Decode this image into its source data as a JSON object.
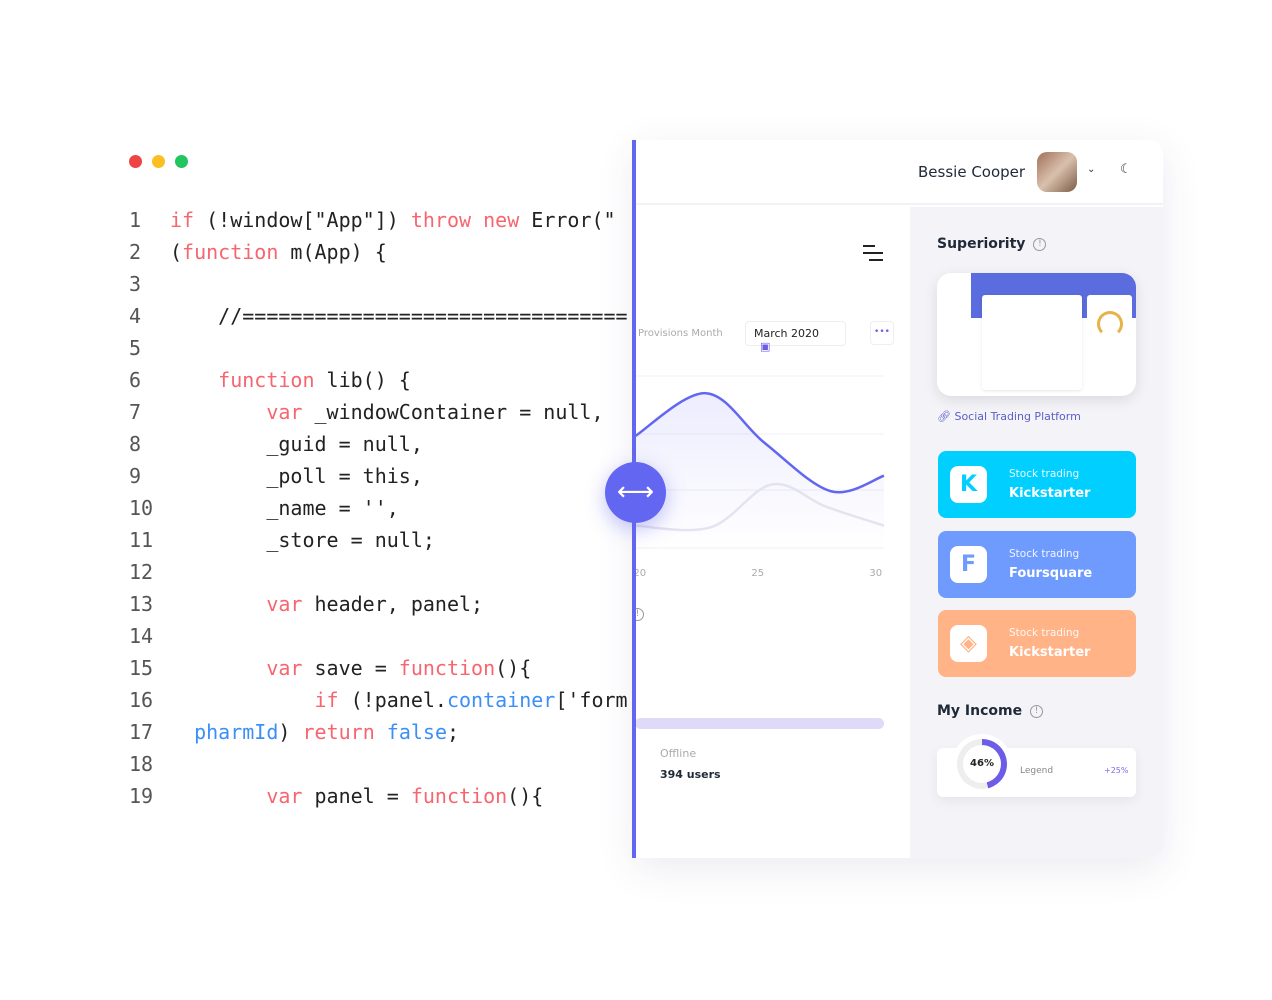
{
  "window_controls": {
    "colors": [
      "#ef4444",
      "#fbbf24",
      "#22c55e"
    ]
  },
  "code_lines": [
    [
      [
        "kw",
        "if"
      ],
      [
        "",
        " (!window[\"App\"]) "
      ],
      [
        "kw",
        "throw"
      ],
      [
        "",
        " "
      ],
      [
        "kw",
        "new"
      ],
      [
        "",
        " Error(\""
      ]
    ],
    [
      [
        "",
        "("
      ],
      [
        "kw",
        "function"
      ],
      [
        "",
        " m(App) {"
      ]
    ],
    [],
    [
      [
        "",
        "    //================================"
      ]
    ],
    [],
    [
      [
        "",
        "    "
      ],
      [
        "kw",
        "function"
      ],
      [
        "",
        " lib() {"
      ]
    ],
    [
      [
        "",
        "        "
      ],
      [
        "kw",
        "var"
      ],
      [
        "",
        " _windowContainer = null,"
      ]
    ],
    [
      [
        "",
        "        _guid = null,"
      ]
    ],
    [
      [
        "",
        "        _poll = this,"
      ]
    ],
    [
      [
        "",
        "        _name = '',"
      ]
    ],
    [
      [
        "",
        "        _store = null;"
      ]
    ],
    [],
    [
      [
        "",
        "        "
      ],
      [
        "kw",
        "var"
      ],
      [
        "",
        " header, panel;"
      ]
    ],
    [],
    [
      [
        "",
        "        "
      ],
      [
        "kw",
        "var"
      ],
      [
        "",
        " save = "
      ],
      [
        "kw",
        "function"
      ],
      [
        "",
        "(){"
      ]
    ],
    [
      [
        "",
        "            "
      ],
      [
        "kw",
        "if"
      ],
      [
        "",
        " (!panel."
      ],
      [
        "bl",
        "container"
      ],
      [
        "",
        "['form"
      ]
    ],
    [
      [
        "",
        "  "
      ],
      [
        "bl",
        "pharmId"
      ],
      [
        "",
        ") "
      ],
      [
        "kw",
        "return"
      ],
      [
        "",
        " "
      ],
      [
        "bl",
        "false"
      ],
      [
        "",
        ";"
      ]
    ],
    [],
    [
      [
        "",
        "        "
      ],
      [
        "kw",
        "var"
      ],
      [
        "",
        " panel = "
      ],
      [
        "kw",
        "function"
      ],
      [
        "",
        "(){"
      ]
    ]
  ],
  "header": {
    "user_name": "Bessie Cooper",
    "chevron_icon": "chevron-down-icon",
    "theme_icon": "moon-icon"
  },
  "main": {
    "provisions_label": "Provisions Month",
    "date_picker": "March 2020",
    "more_icon": "more-horizontal-icon",
    "offline_label": "Offline",
    "offline_value": "394 users"
  },
  "chart_data": {
    "type": "area",
    "x_ticks": [
      "20",
      "25",
      "30"
    ],
    "xlim": [
      19.8,
      30.35
    ],
    "ylim": [
      0,
      100
    ],
    "grid": true,
    "series": [
      {
        "color": "#6366f1",
        "points": [
          [
            19.8,
            65
          ],
          [
            22.8,
            90
          ],
          [
            25.3,
            61
          ],
          [
            28.1,
            33
          ],
          [
            30.35,
            42
          ]
        ]
      },
      {
        "color": "#e5e3ef",
        "points": [
          [
            19.8,
            13
          ],
          [
            23,
            12
          ],
          [
            25.6,
            37
          ],
          [
            27.9,
            24
          ],
          [
            30.35,
            13
          ]
        ]
      }
    ]
  },
  "sidebar": {
    "superiority_title": "Superiority",
    "link_text": "Social Trading Platform",
    "tiles": [
      {
        "subtitle": "Stock trading",
        "name": "Kickstarter",
        "color": "#00cfff",
        "icon": "kickstarter-icon",
        "glyph": "K"
      },
      {
        "subtitle": "Stock trading",
        "name": "Foursquare",
        "color": "#6f9bff",
        "icon": "foursquare-icon",
        "glyph": "F"
      },
      {
        "subtitle": "Stock trading",
        "name": "Kickstarter",
        "color": "#ffb386",
        "icon": "binance-icon",
        "glyph": "◈"
      }
    ],
    "income_title": "My Income",
    "income": {
      "percent": "46%",
      "legend": "Legend",
      "change": "+25%"
    }
  },
  "divider_icon": "arrows-horizontal-icon"
}
